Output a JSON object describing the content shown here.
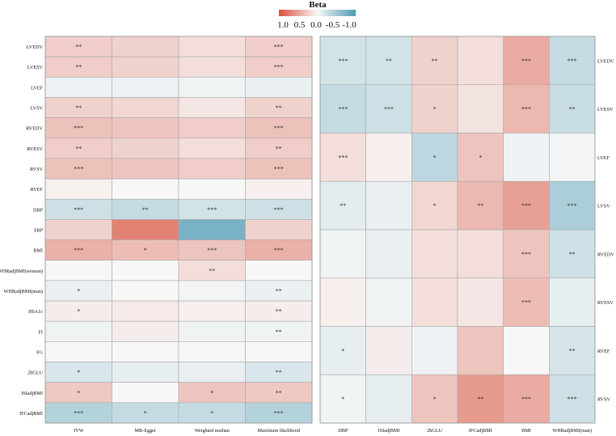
{
  "legend": {
    "title": "Beta",
    "tick_labels": [
      "1.0",
      "0.5",
      "0.0",
      "-0.5",
      "-1.0"
    ],
    "range": [
      1.0,
      -1.0
    ],
    "colors": {
      "pos": "#d9503a",
      "mid": "#f7f7f7",
      "neg": "#4f9bb3"
    }
  },
  "chart_data": [
    {
      "type": "heatmap",
      "title": "",
      "rows": [
        "LVEDV",
        "LVESV",
        "LVEF",
        "LVSV",
        "RVEDV",
        "RVESV",
        "RVSV",
        "RVEF",
        "DBP",
        "SBP",
        "BMI",
        "WHRadjBMI(woman)",
        "WHRadjBMI(man)",
        "HbA1c",
        "FI",
        "FG",
        "2hGLU",
        "ISIadjBMI",
        "IFCadjBMI"
      ],
      "columns": [
        "IVW",
        "MR-Egger",
        "Weighted median",
        "Maximum likelihood"
      ],
      "values": [
        [
          0.25,
          0.22,
          0.15,
          0.25
        ],
        [
          0.25,
          0.22,
          0.15,
          0.25
        ],
        [
          -0.06,
          -0.05,
          -0.04,
          -0.07
        ],
        [
          0.22,
          0.2,
          0.1,
          0.22
        ],
        [
          0.32,
          0.3,
          0.25,
          0.32
        ],
        [
          0.25,
          0.22,
          0.15,
          0.25
        ],
        [
          0.32,
          0.3,
          0.25,
          0.32
        ],
        [
          0.04,
          0.0,
          0.0,
          0.05
        ],
        [
          -0.25,
          -0.3,
          -0.22,
          -0.25
        ],
        [
          0.22,
          0.7,
          -0.75,
          0.22
        ],
        [
          0.42,
          0.35,
          0.3,
          0.42
        ],
        [
          0.0,
          0.0,
          0.15,
          0.0
        ],
        [
          -0.07,
          0.0,
          -0.03,
          -0.07
        ],
        [
          0.06,
          0.08,
          0.05,
          0.06
        ],
        [
          -0.04,
          0.06,
          -0.04,
          -0.04
        ],
        [
          0.0,
          0.0,
          0.0,
          0.0
        ],
        [
          -0.18,
          -0.1,
          -0.08,
          -0.18
        ],
        [
          0.28,
          0.0,
          0.3,
          0.28
        ],
        [
          -0.4,
          -0.3,
          -0.3,
          -0.4
        ]
      ],
      "stars": [
        [
          "**",
          "",
          "",
          "***"
        ],
        [
          "**",
          "",
          "",
          "***"
        ],
        [
          "",
          "",
          "",
          ""
        ],
        [
          "**",
          "",
          "",
          "**"
        ],
        [
          "***",
          "",
          "",
          "***"
        ],
        [
          "**",
          "",
          "",
          "**"
        ],
        [
          "***",
          "",
          "",
          "***"
        ],
        [
          "",
          "",
          "",
          ""
        ],
        [
          "***",
          "**",
          "***",
          "***"
        ],
        [
          "",
          "",
          "",
          ""
        ],
        [
          "***",
          "*",
          "***",
          "***"
        ],
        [
          "",
          "",
          "**",
          ""
        ],
        [
          "*",
          "",
          "",
          "**"
        ],
        [
          "*",
          "",
          "",
          "**"
        ],
        [
          "",
          "",
          "",
          "**"
        ],
        [
          "",
          "",
          "",
          ""
        ],
        [
          "*",
          "",
          "",
          "**"
        ],
        [
          "*",
          "",
          "*",
          "**"
        ],
        [
          "***",
          "*",
          "*",
          "***"
        ]
      ]
    },
    {
      "type": "heatmap",
      "title": "",
      "rows": [
        "LVEDV",
        "LVESV",
        "LVEF",
        "LVSV",
        "RVEDV",
        "RVESV",
        "RVEF",
        "RVSV"
      ],
      "columns": [
        "DBP",
        "ISIadjBMI",
        "2hGLU",
        "IFCadjBMI",
        "BMI",
        "WHRadjBMI(man)"
      ],
      "values": [
        [
          -0.22,
          -0.22,
          0.22,
          0.15,
          0.45,
          -0.3
        ],
        [
          -0.3,
          -0.25,
          0.22,
          0.12,
          0.38,
          -0.28
        ],
        [
          0.15,
          0.05,
          -0.35,
          0.3,
          -0.05,
          -0.03
        ],
        [
          -0.12,
          -0.08,
          0.2,
          0.38,
          0.52,
          -0.45
        ],
        [
          -0.04,
          -0.08,
          0.15,
          0.15,
          0.3,
          -0.25
        ],
        [
          0.05,
          -0.04,
          0.15,
          0.1,
          0.35,
          -0.1
        ],
        [
          -0.1,
          0.06,
          -0.05,
          0.3,
          0.0,
          -0.2
        ],
        [
          -0.04,
          -0.1,
          0.3,
          0.55,
          0.45,
          -0.25
        ]
      ],
      "stars": [
        [
          "***",
          "**",
          "**",
          "",
          "***",
          "***"
        ],
        [
          "***",
          "***",
          "*",
          "",
          "***",
          "**"
        ],
        [
          "***",
          "",
          "*",
          "*",
          "",
          ""
        ],
        [
          "**",
          "",
          "*",
          "**",
          "***",
          "***"
        ],
        [
          "",
          "",
          "",
          "",
          "***",
          "**"
        ],
        [
          "",
          "",
          "",
          "",
          "***",
          ""
        ],
        [
          "*",
          "",
          "",
          "",
          "",
          "**"
        ],
        [
          "*",
          "",
          "*",
          "**",
          "***",
          "***"
        ]
      ]
    }
  ]
}
